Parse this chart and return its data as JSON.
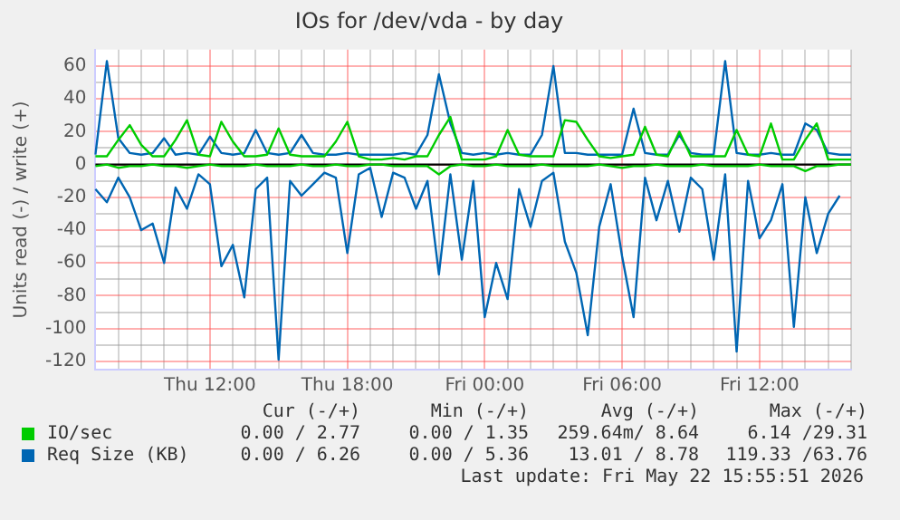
{
  "chart_data": {
    "type": "line",
    "title": "IOs for /dev/vda - by day",
    "ylabel": "Units read (-) / write (+)",
    "categories": [
      null,
      null,
      null,
      null,
      null,
      null,
      null,
      null,
      null,
      null,
      "Thu 12:00",
      null,
      null,
      null,
      null,
      null,
      null,
      null,
      null,
      null,
      null,
      null,
      "Thu 18:00",
      null,
      null,
      null,
      null,
      null,
      null,
      null,
      null,
      null,
      null,
      null,
      "Fri 00:00",
      null,
      null,
      null,
      null,
      null,
      null,
      null,
      null,
      null,
      null,
      null,
      "Fri 06:00",
      null,
      null,
      null,
      null,
      null,
      null,
      null,
      null,
      null,
      null,
      null,
      "Fri 12:00",
      null,
      null,
      null,
      null,
      null,
      null,
      null,
      null
    ],
    "ylim": [
      -125,
      70
    ],
    "yticks": [
      -120,
      {
        "value": -110,
        "label": null
      },
      -100,
      {
        "value": -90,
        "label": null
      },
      -80,
      {
        "value": -70,
        "label": null
      },
      -60,
      {
        "value": -50,
        "label": null
      },
      -40,
      {
        "value": -30,
        "label": null
      },
      -20,
      {
        "value": -10,
        "label": null
      },
      0,
      {
        "value": 10,
        "label": null
      },
      20,
      {
        "value": 30,
        "label": null
      },
      40,
      {
        "value": 50,
        "label": null
      },
      60
    ],
    "grid": true,
    "legend": "bottom",
    "marker": "none",
    "ref_lines": [
      {
        "axis": "y",
        "value": 0,
        "color": "#000000"
      }
    ],
    "series": [
      {
        "name": "IO/sec",
        "color": "#00cc00",
        "values": [
          5,
          5,
          15,
          24,
          12,
          5,
          5,
          15,
          27,
          6,
          5,
          26,
          14,
          5,
          5,
          6,
          22,
          6,
          5,
          5,
          5,
          14,
          26,
          5,
          3,
          3,
          4,
          3,
          5,
          5,
          18,
          29,
          3,
          3,
          3,
          5,
          21,
          6,
          5,
          5,
          5,
          27,
          26,
          15,
          5,
          4,
          5,
          6,
          23,
          6,
          5,
          20,
          5,
          5,
          5,
          5,
          21,
          6,
          5,
          25,
          3,
          3,
          15,
          25,
          3,
          3,
          3
        ]
      },
      {
        "color": "#00cc00",
        "values": [
          -1,
          0,
          -2,
          -1,
          -1,
          0,
          -1,
          -1,
          -2,
          -1,
          0,
          -1,
          -1,
          -1,
          0,
          -1,
          -1,
          -1,
          0,
          -1,
          -1,
          0,
          -1,
          -1,
          0,
          0,
          -1,
          -1,
          -1,
          -1,
          -6,
          -1,
          0,
          -1,
          -1,
          0,
          -1,
          -1,
          -1,
          0,
          -1,
          -1,
          -1,
          -1,
          0,
          -1,
          -2,
          -1,
          -1,
          0,
          -1,
          -1,
          -1,
          0,
          -1,
          -1,
          -1,
          -1,
          0,
          -1,
          -1,
          -1,
          -4,
          -1,
          -1,
          0,
          0
        ]
      },
      {
        "name": "Req Size (KB)",
        "color": "#0066b3",
        "values": [
          6,
          63,
          16,
          7,
          6,
          7,
          16,
          6,
          7,
          6,
          17,
          7,
          6,
          7,
          21,
          7,
          6,
          7,
          18,
          7,
          6,
          6,
          7,
          6,
          6,
          6,
          6,
          7,
          6,
          18,
          55,
          25,
          7,
          6,
          7,
          6,
          7,
          6,
          6,
          18,
          60,
          7,
          7,
          6,
          6,
          6,
          6,
          34,
          7,
          6,
          6,
          18,
          7,
          6,
          6,
          63,
          7,
          6,
          6,
          7,
          6,
          6,
          25,
          21,
          7,
          6,
          6
        ]
      },
      {
        "color": "#0066b3",
        "values": [
          -15,
          -23,
          -8,
          -20,
          -40,
          -36,
          -60,
          -14,
          -27,
          -6,
          -12,
          -62,
          -49,
          -81,
          -15,
          -8,
          -119,
          -10,
          -19,
          -12,
          -5,
          -8,
          -54,
          -6,
          -2,
          -32,
          -5,
          -8,
          -27,
          -10,
          -67,
          -6,
          -58,
          -10,
          -93,
          -60,
          -82,
          -15,
          -38,
          -10,
          -5,
          -47,
          -66,
          -104,
          -38,
          -12,
          -56,
          -93,
          -8,
          -34,
          -10,
          -41,
          -8,
          -15,
          -58,
          -6,
          -114,
          -10,
          -45,
          -34,
          -12,
          -99,
          -20,
          -54,
          -30,
          -19,
          null
        ]
      }
    ],
    "annotations": [
      "Cur (-/+)",
      "Min (-/+)",
      "Avg (-/+)",
      "Max (-/+)",
      "0.00 / 2.77",
      "0.00 / 1.35",
      "259.64m/ 8.64",
      "6.14 /29.31",
      "0.00 / 6.26",
      "0.00 / 5.36",
      "13.01 / 8.78",
      "119.33 /63.76",
      "Last update: Fri May 22 15:55:51 2026"
    ]
  }
}
